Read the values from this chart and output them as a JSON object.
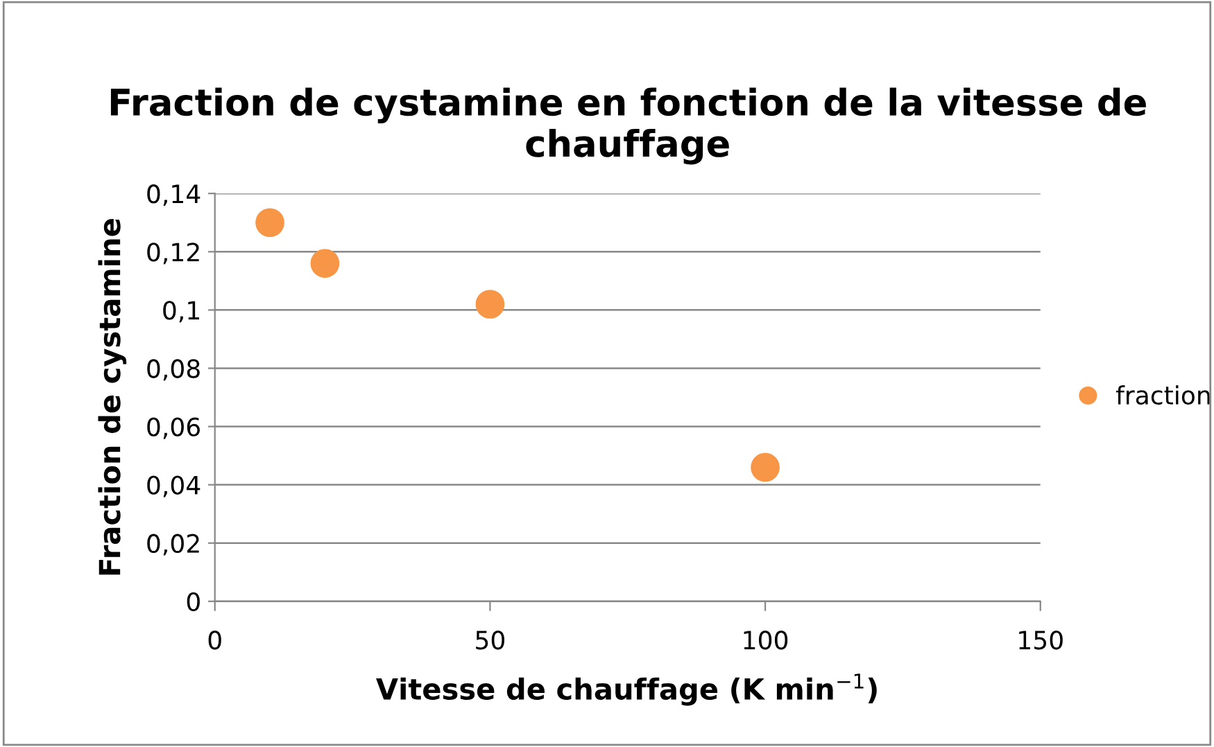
{
  "chart_data": {
    "type": "scatter",
    "title": "Fraction de cystamine en fonction de la vitesse de chauffage",
    "xlabel": "Vitesse de chauffage (K min$^{−1}$)",
    "ylabel": "Fraction de cystamine",
    "x": [
      10,
      20,
      50,
      100
    ],
    "series": [
      {
        "name": "fraction",
        "color": "#f79646",
        "values": [
          0.13,
          0.116,
          0.102,
          0.046
        ]
      }
    ],
    "xlim": [
      0,
      150
    ],
    "xticks": [
      0,
      50,
      100,
      150
    ],
    "ylim": [
      0,
      0.14
    ],
    "yticks": [
      {
        "value": 0,
        "label": "0"
      },
      {
        "value": 0.02,
        "label": "0,02"
      },
      {
        "value": 0.04,
        "label": "0,04"
      },
      {
        "value": 0.06,
        "label": "0,06"
      },
      {
        "value": 0.08,
        "label": "0,08"
      },
      {
        "value": 0.1,
        "label": "0,1"
      },
      {
        "value": 0.12,
        "label": "0,12"
      },
      {
        "value": 0.14,
        "label": "0,14"
      }
    ],
    "grid": "y",
    "legend": "right",
    "marker": "circle"
  }
}
